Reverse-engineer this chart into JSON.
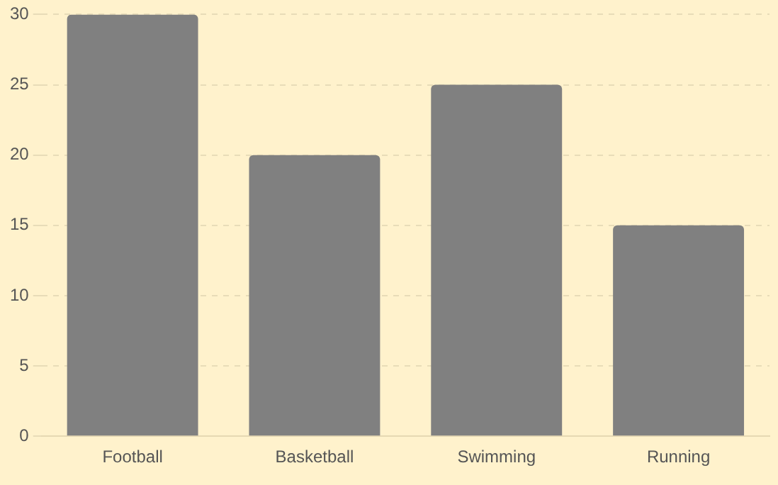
{
  "chart_data": {
    "type": "bar",
    "categories": [
      "Football",
      "Basketball",
      "Swimming",
      "Running"
    ],
    "values": [
      30,
      20,
      25,
      15
    ],
    "color": "#808080",
    "ylim": [
      0,
      30
    ],
    "yticks": [
      0,
      5,
      10,
      15,
      20,
      25,
      30
    ],
    "grid": "y",
    "legend": false
  }
}
